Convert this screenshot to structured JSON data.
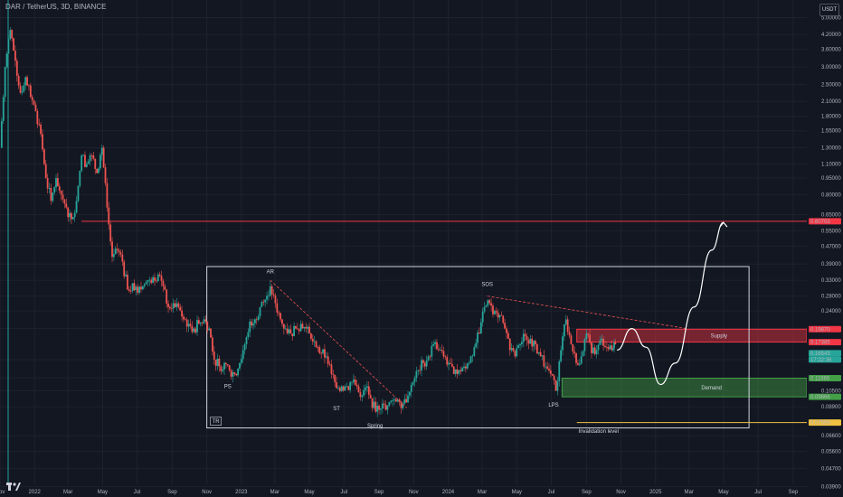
{
  "header": {
    "symbol": "DAR / TetherUS, 3D, BINANCE",
    "currency": "USDT"
  },
  "colors": {
    "background": "#131722",
    "up": "#26a69a",
    "down": "#ef5350",
    "resistance": "#f23645",
    "demand": "#2e7d32",
    "invalidation": "#f0c040",
    "annotation": "#ffffff"
  },
  "chart_data": {
    "type": "candlestick",
    "y_scale": "log",
    "ylim": [
      0.0395,
      6.0
    ],
    "xlim": [
      "2021-11-01",
      "2025-09-25"
    ],
    "y_ticks": [
      "5.00000",
      "4.20000",
      "3.60000",
      "3.00000",
      "2.50000",
      "2.10000",
      "1.80000",
      "1.55000",
      "1.30000",
      "1.10000",
      "0.95000",
      "0.80000",
      "0.65000",
      "0.55000",
      "0.47000",
      "0.39000",
      "0.33000",
      "0.28000",
      "0.24000",
      "0.20000",
      "0.14500",
      "0.12000",
      "0.10500",
      "0.08900",
      "0.06600",
      "0.05600",
      "0.04700",
      "0.03900"
    ],
    "x_ticks": [
      {
        "date": "2021-11-01",
        "label": "Nov"
      },
      {
        "date": "2022-01-01",
        "label": "2022"
      },
      {
        "date": "2022-03-01",
        "label": "Mar"
      },
      {
        "date": "2022-05-01",
        "label": "May"
      },
      {
        "date": "2022-07-01",
        "label": "Jul"
      },
      {
        "date": "2022-09-01",
        "label": "Sep"
      },
      {
        "date": "2022-11-01",
        "label": "Nov"
      },
      {
        "date": "2023-01-01",
        "label": "2023"
      },
      {
        "date": "2023-03-01",
        "label": "Mar"
      },
      {
        "date": "2023-05-01",
        "label": "May"
      },
      {
        "date": "2023-07-01",
        "label": "Jul"
      },
      {
        "date": "2023-09-01",
        "label": "Sep"
      },
      {
        "date": "2023-11-01",
        "label": "Nov"
      },
      {
        "date": "2024-01-01",
        "label": "2024"
      },
      {
        "date": "2024-03-01",
        "label": "Mar"
      },
      {
        "date": "2024-05-01",
        "label": "May"
      },
      {
        "date": "2024-07-01",
        "label": "Jul"
      },
      {
        "date": "2024-09-01",
        "label": "Sep"
      },
      {
        "date": "2024-11-01",
        "label": "Nov"
      },
      {
        "date": "2025-01-01",
        "label": "2025"
      },
      {
        "date": "2025-03-01",
        "label": "Mar"
      },
      {
        "date": "2025-05-01",
        "label": "May"
      },
      {
        "date": "2025-07-01",
        "label": "Jul"
      },
      {
        "date": "2025-09-01",
        "label": "Sep"
      }
    ],
    "price_path": [
      [
        "2021-11-01",
        1.3
      ],
      [
        "2021-11-10",
        3.0
      ],
      [
        "2021-11-19",
        4.4
      ],
      [
        "2021-11-28",
        3.2
      ],
      [
        "2021-12-07",
        2.3
      ],
      [
        "2021-12-16",
        2.7
      ],
      [
        "2021-12-25",
        2.2
      ],
      [
        "2022-01-03",
        1.9
      ],
      [
        "2022-01-12",
        1.5
      ],
      [
        "2022-01-21",
        0.95
      ],
      [
        "2022-01-30",
        0.75
      ],
      [
        "2022-02-08",
        0.95
      ],
      [
        "2022-02-17",
        0.8
      ],
      [
        "2022-02-26",
        0.7
      ],
      [
        "2022-03-07",
        0.62
      ],
      [
        "2022-03-16",
        0.75
      ],
      [
        "2022-03-25",
        1.2
      ],
      [
        "2022-04-03",
        1.1
      ],
      [
        "2022-04-12",
        1.2
      ],
      [
        "2022-04-21",
        1.0
      ],
      [
        "2022-04-30",
        1.3
      ],
      [
        "2022-05-09",
        0.7
      ],
      [
        "2022-05-18",
        0.42
      ],
      [
        "2022-05-27",
        0.45
      ],
      [
        "2022-06-05",
        0.4
      ],
      [
        "2022-06-14",
        0.3
      ],
      [
        "2022-06-23",
        0.32
      ],
      [
        "2022-07-02",
        0.29
      ],
      [
        "2022-07-11",
        0.31
      ],
      [
        "2022-07-20",
        0.33
      ],
      [
        "2022-07-29",
        0.34
      ],
      [
        "2022-08-07",
        0.35
      ],
      [
        "2022-08-16",
        0.31
      ],
      [
        "2022-08-25",
        0.25
      ],
      [
        "2022-09-03",
        0.26
      ],
      [
        "2022-09-12",
        0.25
      ],
      [
        "2022-09-21",
        0.22
      ],
      [
        "2022-09-30",
        0.21
      ],
      [
        "2022-10-09",
        0.2
      ],
      [
        "2022-10-18",
        0.21
      ],
      [
        "2022-10-27",
        0.22
      ],
      [
        "2022-11-05",
        0.2
      ],
      [
        "2022-11-14",
        0.145
      ],
      [
        "2022-11-23",
        0.135
      ],
      [
        "2022-12-02",
        0.14
      ],
      [
        "2022-12-11",
        0.13
      ],
      [
        "2022-12-20",
        0.125
      ],
      [
        "2022-12-29",
        0.14
      ],
      [
        "2023-01-07",
        0.17
      ],
      [
        "2023-01-16",
        0.215
      ],
      [
        "2023-01-25",
        0.22
      ],
      [
        "2023-02-03",
        0.25
      ],
      [
        "2023-02-12",
        0.27
      ],
      [
        "2023-02-21",
        0.31
      ],
      [
        "2023-03-02",
        0.26
      ],
      [
        "2023-03-11",
        0.22
      ],
      [
        "2023-03-20",
        0.2
      ],
      [
        "2023-03-29",
        0.19
      ],
      [
        "2023-04-07",
        0.2
      ],
      [
        "2023-04-16",
        0.21
      ],
      [
        "2023-04-25",
        0.2
      ],
      [
        "2023-05-04",
        0.18
      ],
      [
        "2023-05-13",
        0.165
      ],
      [
        "2023-05-22",
        0.155
      ],
      [
        "2023-05-31",
        0.15
      ],
      [
        "2023-06-09",
        0.125
      ],
      [
        "2023-06-18",
        0.108
      ],
      [
        "2023-06-27",
        0.11
      ],
      [
        "2023-07-06",
        0.11
      ],
      [
        "2023-07-15",
        0.115
      ],
      [
        "2023-07-24",
        0.11
      ],
      [
        "2023-08-02",
        0.1
      ],
      [
        "2023-08-11",
        0.11
      ],
      [
        "2023-08-20",
        0.088
      ],
      [
        "2023-08-29",
        0.09
      ],
      [
        "2023-09-07",
        0.092
      ],
      [
        "2023-09-16",
        0.09
      ],
      [
        "2023-09-25",
        0.095
      ],
      [
        "2023-10-04",
        0.096
      ],
      [
        "2023-10-13",
        0.092
      ],
      [
        "2023-10-22",
        0.1
      ],
      [
        "2023-10-31",
        0.115
      ],
      [
        "2023-11-09",
        0.13
      ],
      [
        "2023-11-18",
        0.14
      ],
      [
        "2023-11-27",
        0.15
      ],
      [
        "2023-12-06",
        0.17
      ],
      [
        "2023-12-15",
        0.16
      ],
      [
        "2023-12-24",
        0.15
      ],
      [
        "2024-01-02",
        0.14
      ],
      [
        "2024-01-11",
        0.125
      ],
      [
        "2024-01-20",
        0.13
      ],
      [
        "2024-01-29",
        0.135
      ],
      [
        "2024-02-07",
        0.14
      ],
      [
        "2024-02-16",
        0.165
      ],
      [
        "2024-02-25",
        0.19
      ],
      [
        "2024-03-05",
        0.25
      ],
      [
        "2024-03-14",
        0.26
      ],
      [
        "2024-03-23",
        0.24
      ],
      [
        "2024-04-01",
        0.23
      ],
      [
        "2024-04-10",
        0.2
      ],
      [
        "2024-04-19",
        0.16
      ],
      [
        "2024-04-28",
        0.15
      ],
      [
        "2024-05-07",
        0.17
      ],
      [
        "2024-05-16",
        0.185
      ],
      [
        "2024-05-25",
        0.18
      ],
      [
        "2024-06-03",
        0.17
      ],
      [
        "2024-06-12",
        0.15
      ],
      [
        "2024-06-21",
        0.135
      ],
      [
        "2024-06-30",
        0.125
      ],
      [
        "2024-07-09",
        0.105
      ],
      [
        "2024-07-18",
        0.16
      ],
      [
        "2024-07-27",
        0.22
      ],
      [
        "2024-08-05",
        0.17
      ],
      [
        "2024-08-14",
        0.14
      ],
      [
        "2024-08-23",
        0.15
      ],
      [
        "2024-09-01",
        0.19
      ],
      [
        "2024-09-10",
        0.155
      ],
      [
        "2024-09-19",
        0.16
      ],
      [
        "2024-09-28",
        0.18
      ],
      [
        "2024-10-07",
        0.165
      ],
      [
        "2024-10-16",
        0.16
      ],
      [
        "2024-10-22",
        0.17
      ]
    ],
    "levels": [
      {
        "name": "resistance",
        "price": 0.60703,
        "label": "0.60703",
        "color": "#f23645"
      },
      {
        "name": "invalidation",
        "price": 0.07558,
        "label": "0.07558",
        "color": "#f0c040"
      }
    ],
    "price_labels": [
      {
        "price": 0.1987,
        "label": "0.19870",
        "color": "#f23645"
      },
      {
        "price": 0.17385,
        "label": "0.17385",
        "color": "#f23645"
      },
      {
        "price": 0.16543,
        "label": "0.16543",
        "color": "#26a69a"
      },
      {
        "price": 0.16543,
        "label": "17:22:36",
        "color": "#26a69a"
      },
      {
        "price": 0.11965,
        "label": "0.11965",
        "color": "#43a047"
      },
      {
        "price": 0.09866,
        "label": "0.09866",
        "color": "#43a047"
      }
    ],
    "zones": [
      {
        "name": "supply",
        "label": "Supply",
        "from": "2024-08-15",
        "to": "2025-09-25",
        "low": 0.17385,
        "high": 0.1987,
        "color": "#f23645"
      },
      {
        "name": "demand",
        "label": "Demand",
        "from": "2024-07-20",
        "to": "2025-09-25",
        "low": 0.09866,
        "high": 0.11965,
        "color": "#43a047"
      }
    ],
    "range_box": {
      "label": "TR",
      "from": "2022-11-01",
      "to": "2025-06-15",
      "low": 0.0715,
      "high": 0.38
    },
    "annotations": [
      {
        "text": "PS",
        "date": "2022-12-08",
        "price": 0.108
      },
      {
        "text": "AR",
        "date": "2023-02-21",
        "price": 0.355
      },
      {
        "text": "ST",
        "date": "2023-06-18",
        "price": 0.086
      },
      {
        "text": "Spring",
        "date": "2023-08-25",
        "price": 0.072
      },
      {
        "text": "SOS",
        "date": "2024-03-10",
        "price": 0.31
      },
      {
        "text": "LPS",
        "date": "2024-07-05",
        "price": 0.089
      },
      {
        "text": "Invalidation level",
        "date": "2024-08-18",
        "price": 0.068
      }
    ],
    "trendlines": [
      {
        "name": "ar-trendline",
        "from": [
          "2023-02-21",
          0.33
        ],
        "to": [
          "2023-10-20",
          0.088
        ]
      },
      {
        "name": "sos-trendline",
        "from": [
          "2024-03-10",
          0.28
        ],
        "to": [
          "2025-02-25",
          0.2
        ]
      }
    ],
    "projection": [
      [
        "2024-10-25",
        0.16
      ],
      [
        "2024-11-20",
        0.2
      ],
      [
        "2024-12-15",
        0.165
      ],
      [
        "2025-01-10",
        0.112
      ],
      [
        "2025-02-05",
        0.14
      ],
      [
        "2025-03-10",
        0.25
      ],
      [
        "2025-04-10",
        0.45
      ],
      [
        "2025-05-01",
        0.6
      ]
    ]
  }
}
